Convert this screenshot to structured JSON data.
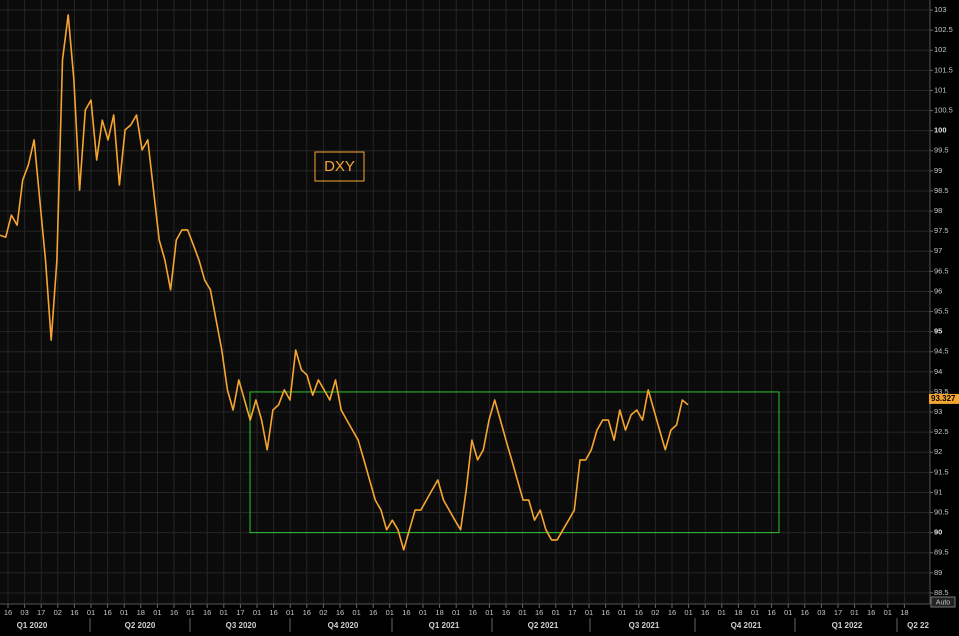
{
  "chart_data": {
    "type": "line",
    "title": "DXY",
    "color": "#f7a531",
    "values": [
      97.4,
      97.35,
      97.9,
      97.65,
      98.77,
      99.15,
      99.77,
      98.27,
      96.78,
      94.79,
      96.78,
      101.76,
      102.88,
      101.26,
      98.52,
      100.51,
      100.76,
      99.27,
      100.26,
      99.77,
      100.39,
      98.65,
      100.02,
      100.14,
      100.39,
      99.52,
      99.77,
      98.52,
      97.28,
      96.78,
      96.04,
      97.28,
      97.53,
      97.53,
      97.16,
      96.78,
      96.28,
      96.04,
      95.29,
      94.54,
      93.55,
      93.05,
      93.8,
      93.3,
      92.8,
      93.3,
      92.8,
      92.06,
      93.05,
      93.18,
      93.55,
      93.3,
      94.54,
      94.05,
      93.92,
      93.42,
      93.8,
      93.55,
      93.3,
      93.8,
      93.05,
      92.8,
      92.55,
      92.3,
      91.81,
      91.31,
      90.81,
      90.56,
      90.07,
      90.31,
      90.07,
      89.57,
      90.07,
      90.56,
      90.56,
      90.81,
      91.06,
      91.31,
      90.81,
      90.56,
      90.31,
      90.07,
      91.06,
      92.3,
      91.81,
      92.06,
      92.8,
      93.3,
      92.8,
      92.3,
      91.81,
      91.31,
      90.81,
      90.81,
      90.31,
      90.56,
      90.07,
      89.82,
      89.82,
      90.07,
      90.31,
      90.56,
      91.81,
      91.81,
      92.06,
      92.55,
      92.8,
      92.8,
      92.3,
      93.05,
      92.55,
      92.93,
      93.05,
      92.8,
      93.55,
      93.05,
      92.55,
      92.06,
      92.55,
      92.68,
      93.3,
      93.18
    ],
    "last_value": 93.327,
    "range_box": [
      90,
      93.5
    ],
    "ylim": [
      88.25,
      103.25
    ],
    "yticks": [
      88.5,
      89,
      89.5,
      90,
      90.5,
      91,
      91.5,
      92,
      92.5,
      93,
      93.5,
      94,
      94.5,
      95,
      95.5,
      96,
      96.5,
      97,
      97.5,
      98,
      98.5,
      99,
      99.5,
      100,
      100.5,
      101,
      101.5,
      102,
      102.5,
      103
    ],
    "xtick_labels": [
      "16",
      "03",
      "17",
      "02",
      "16",
      "01",
      "16",
      "01",
      "18",
      "01",
      "16",
      "01",
      "16",
      "01",
      "17",
      "01",
      "16",
      "01",
      "16",
      "02",
      "16",
      "01",
      "16",
      "01",
      "16",
      "01",
      "18",
      "01",
      "16",
      "01",
      "16",
      "01",
      "16",
      "01",
      "17",
      "01",
      "16",
      "01",
      "16",
      "02",
      "16",
      "01",
      "16",
      "01",
      "18",
      "01",
      "16",
      "01",
      "16",
      "03",
      "17",
      "01",
      "16",
      "01",
      "18"
    ],
    "quarter_labels": [
      "Q1 2020",
      "Q2 2020",
      "Q3 2020",
      "Q4 2020",
      "Q1 2021",
      "Q2 2021",
      "Q3 2021",
      "Q4 2021",
      "Q1 2022",
      "Q2 22"
    ],
    "y_axis_mode": "Auto",
    "grid": true
  }
}
